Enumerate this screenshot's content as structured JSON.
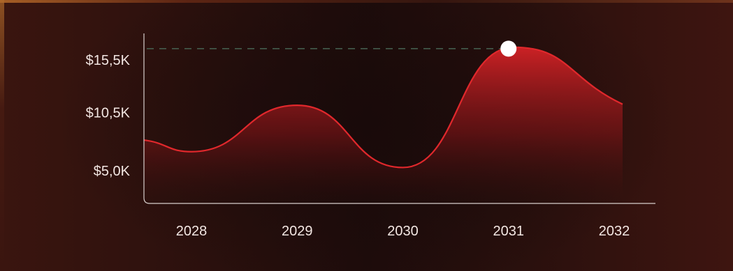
{
  "chart_data": {
    "type": "area",
    "title": "",
    "xlabel": "",
    "ylabel": "",
    "categories": [
      "2028",
      "2029",
      "2030",
      "2031",
      "2032"
    ],
    "y_tick_labels": [
      "$15,5K",
      "$10,5K",
      "$5,0K"
    ],
    "y_ticks": [
      15.5,
      10.5,
      5.0
    ],
    "ylim": [
      0,
      20
    ],
    "series": [
      {
        "x": [
          2027.55,
          2028.0,
          2029.0,
          2030.0,
          2031.05,
          2032.0
        ],
        "values": [
          7.9,
          6.8,
          11.2,
          5.3,
          16.7,
          11.3
        ]
      }
    ],
    "highlight": {
      "x": 2031.0,
      "value": 16.7
    },
    "grid": false,
    "colors": {
      "line": "#e0282c",
      "area_top": "#d42226",
      "area_bottom": "#2a0f0c",
      "axis": "#d8cfcc",
      "reference_line": "#4a6a58",
      "marker": "#ffffff"
    }
  }
}
